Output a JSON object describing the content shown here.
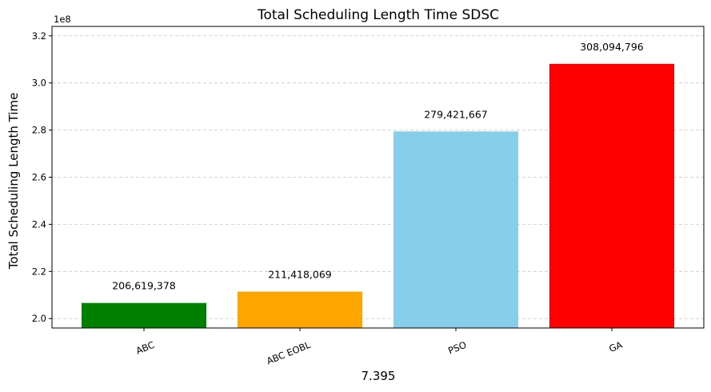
{
  "chart_data": {
    "type": "bar",
    "title": "Total Scheduling Length Time SDSC",
    "xlabel": "7.395",
    "ylabel": "Total Scheduling Length Time",
    "offset_text": "1e8",
    "categories": [
      "ABC",
      "ABC EOBL",
      "PSO",
      "GA"
    ],
    "values": [
      206619378,
      211418069,
      279421667,
      308094796
    ],
    "data_labels": [
      "206,619,378",
      "211,418,069",
      "279,421,667",
      "308,094,796"
    ],
    "colors": [
      "#008000",
      "#ffa500",
      "#87ceeb",
      "#ff0000"
    ],
    "ylim": [
      196000000,
      324000000
    ],
    "yticks": [
      200000000,
      220000000,
      240000000,
      260000000,
      280000000,
      300000000,
      320000000
    ],
    "ytick_labels": [
      "2.0",
      "2.2",
      "2.4",
      "2.6",
      "2.8",
      "3.0",
      "3.2"
    ],
    "grid": "y-dashed",
    "legend": "none"
  }
}
